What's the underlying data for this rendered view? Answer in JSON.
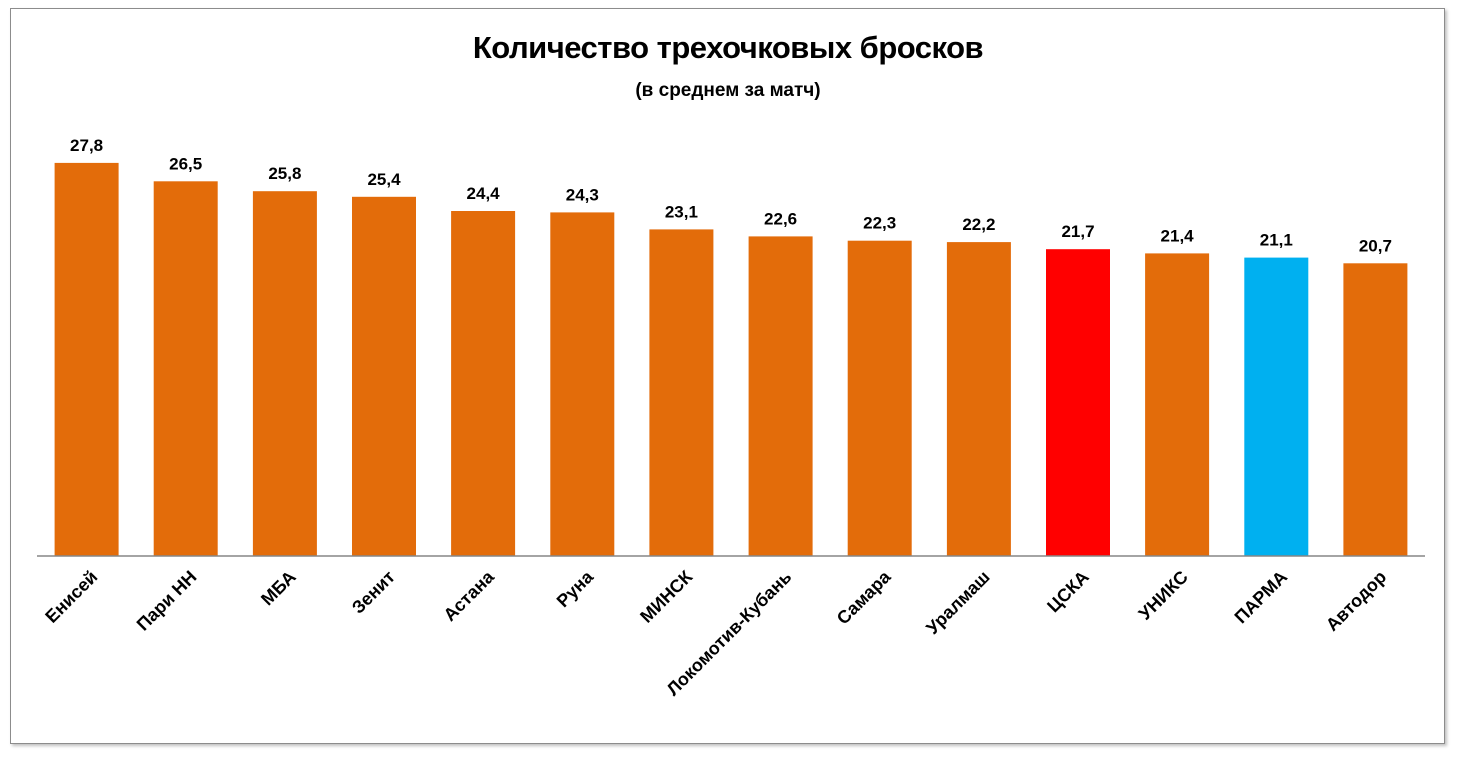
{
  "chart_data": {
    "type": "bar",
    "title": "Количество трехочковых бросков",
    "subtitle": "(в среднем за матч)",
    "categories": [
      "Енисей",
      "Пари НН",
      "МБА",
      "Зенит",
      "Астана",
      "Руна",
      "МИНСК",
      "Локомотив-Кубань",
      "Самара",
      "Уралмаш",
      "ЦСКА",
      "УНИКС",
      "ПАРМА",
      "Автодор"
    ],
    "values": [
      27.8,
      26.5,
      25.8,
      25.4,
      24.4,
      24.3,
      23.1,
      22.6,
      22.3,
      22.2,
      21.7,
      21.4,
      21.1,
      20.7
    ],
    "value_labels": [
      "27,8",
      "26,5",
      "25,8",
      "25,4",
      "24,4",
      "24,3",
      "23,1",
      "22,6",
      "22,3",
      "22,2",
      "21,7",
      "21,4",
      "21,1",
      "20,7"
    ],
    "colors": [
      "#e36c0a",
      "#e36c0a",
      "#e36c0a",
      "#e36c0a",
      "#e36c0a",
      "#e36c0a",
      "#e36c0a",
      "#e36c0a",
      "#e36c0a",
      "#e36c0a",
      "#ff0000",
      "#e36c0a",
      "#00b0f0",
      "#e36c0a"
    ],
    "ylim": [
      0,
      30
    ],
    "grid": false,
    "legend": "none"
  }
}
